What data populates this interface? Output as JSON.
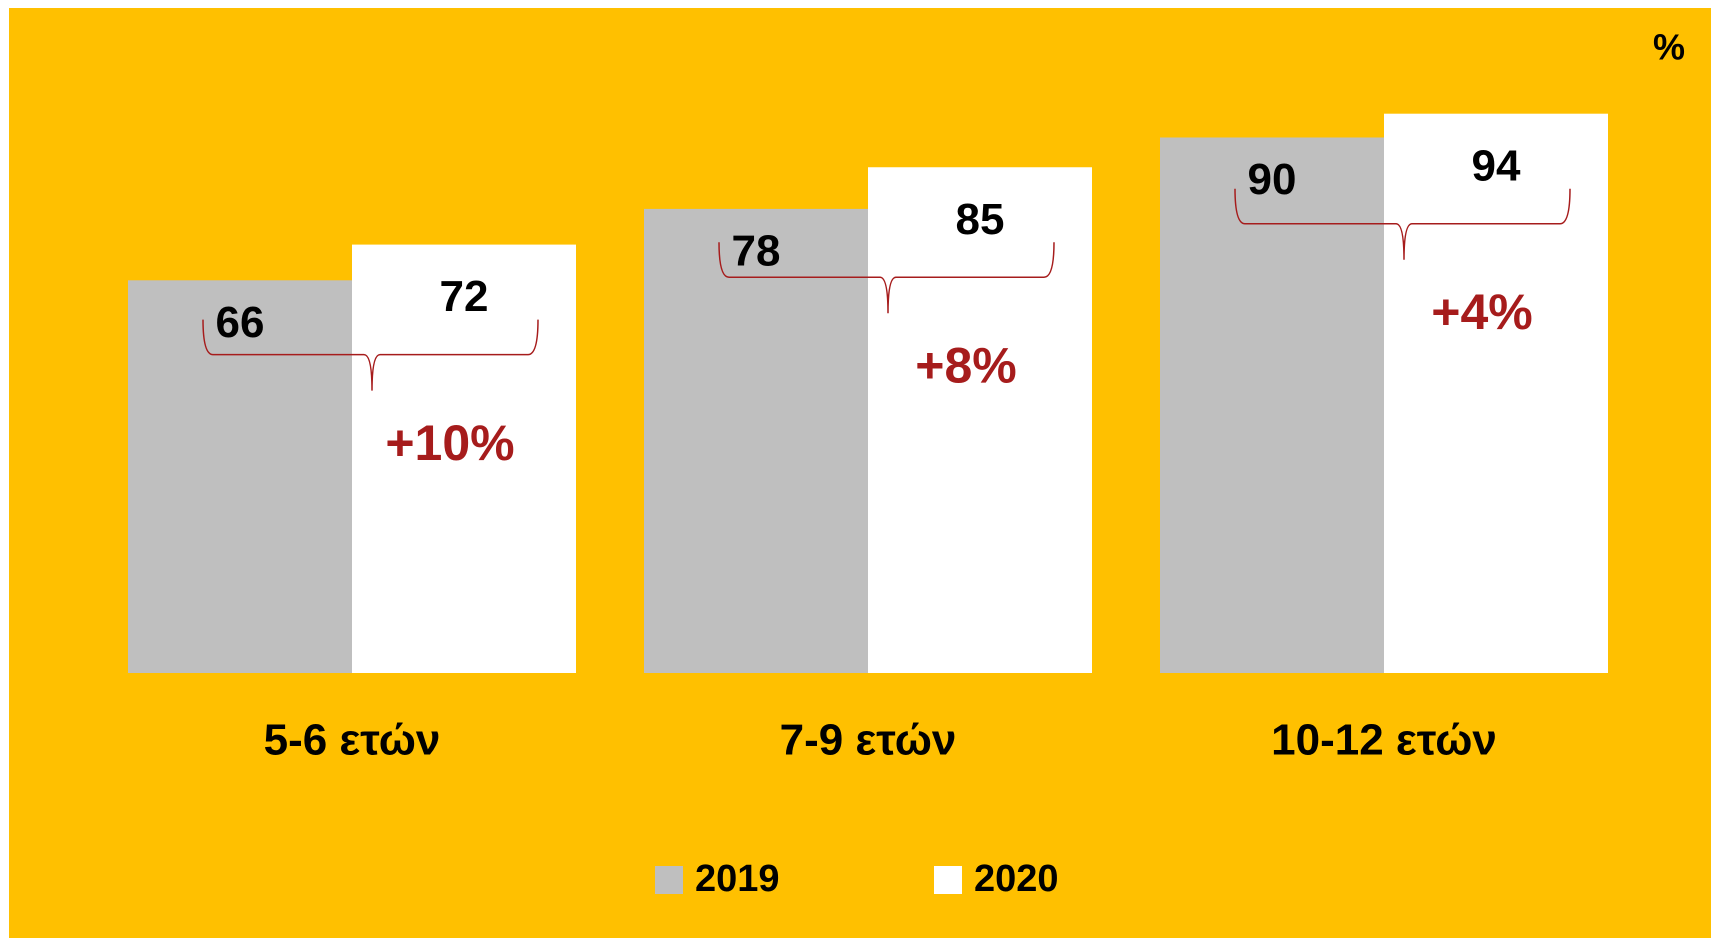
{
  "chart_data": {
    "type": "bar",
    "unit_label": "%",
    "categories": [
      "5-6 ετών",
      "7-9 ετών",
      "10-12 ετών"
    ],
    "series": [
      {
        "name": "2019",
        "color": "#bfbfbf",
        "values": [
          66,
          78,
          90
        ]
      },
      {
        "name": "2020",
        "color": "#ffffff",
        "values": [
          72,
          85,
          94
        ]
      }
    ],
    "annotations": [
      "+10%",
      "+8%",
      "+4%"
    ],
    "annotation_color": "#a61c1c",
    "background": "#ffc000",
    "ylim": [
      0,
      100
    ]
  }
}
